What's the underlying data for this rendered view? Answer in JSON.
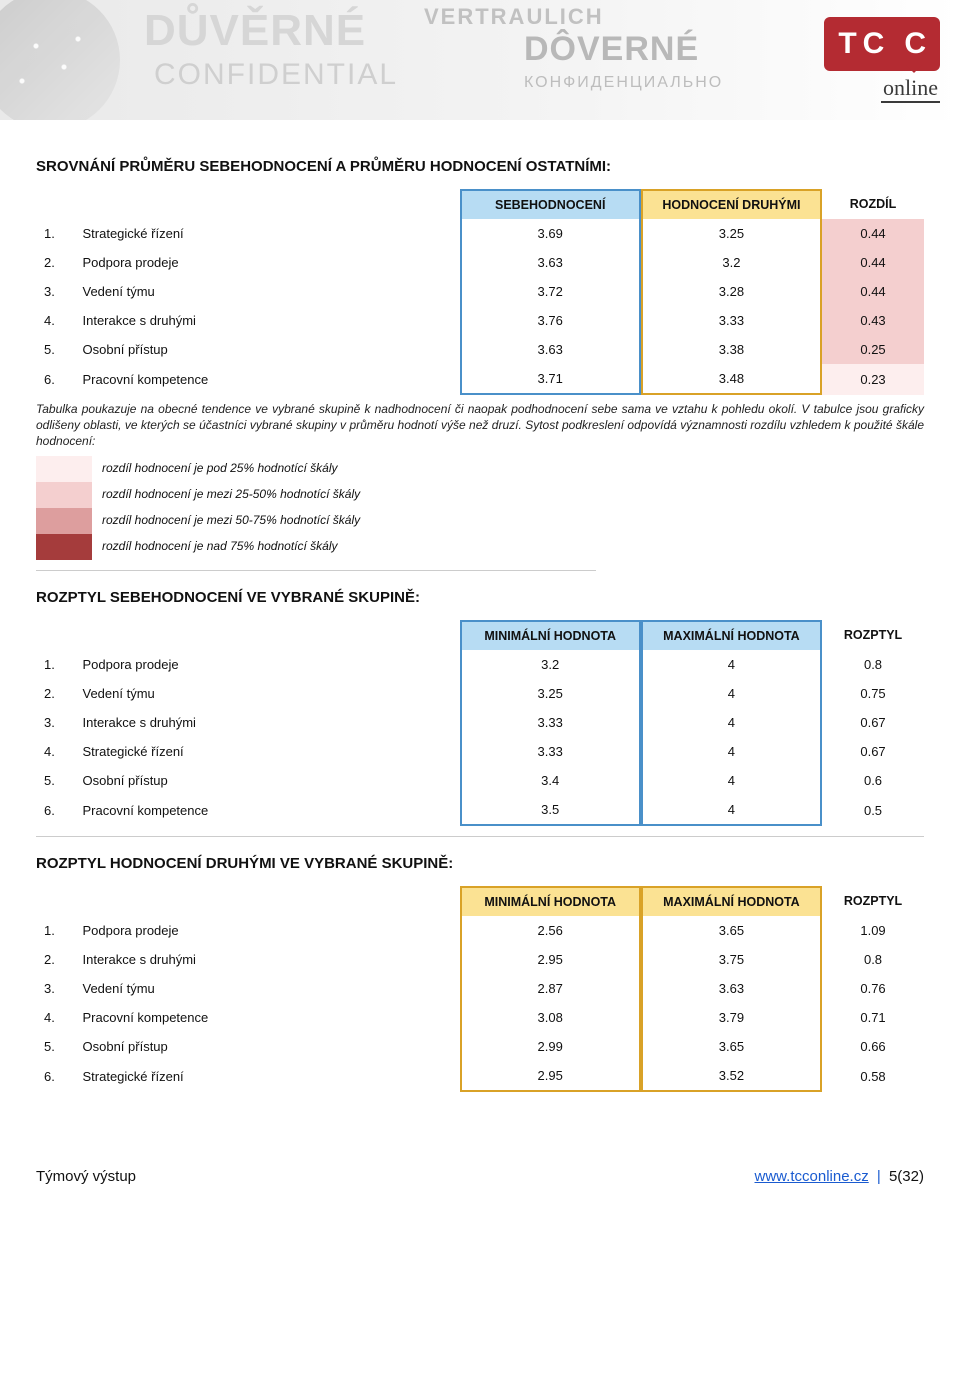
{
  "banner": {
    "words": {
      "duverne": "DŮVĚRNÉ",
      "vertraulich": "VERTRAULICH",
      "confidential": "CONFIDENTIAL",
      "doverne": "DÔVERNÉ",
      "russian": "КОНФИДЕНЦИАЛЬНО"
    },
    "logo_letters": [
      "T",
      "C",
      "C"
    ],
    "logo_sub": "online"
  },
  "colors": {
    "self_header_bg": "#b7dcf3",
    "self_border": "#4a90c9",
    "others_header_bg": "#fbe293",
    "others_border": "#d9a227",
    "severity": [
      "#fdeeee",
      "#f4cfcf",
      "#dd9e9e",
      "#a53c3c"
    ]
  },
  "table1": {
    "title": "SROVNÁNÍ PRŮMĚRU SEBEHODNOCENÍ A PRŮMĚRU HODNOCENÍ OSTATNÍMI:",
    "headers": {
      "self": "SEBEHODNOCENÍ",
      "others": "HODNOCENÍ DRUHÝMI",
      "diff": "ROZDÍL"
    },
    "rows": [
      {
        "n": "1.",
        "name": "Strategické řízení",
        "self": "3.69",
        "others": "3.25",
        "diff": "0.44",
        "sev": 1
      },
      {
        "n": "2.",
        "name": "Podpora prodeje",
        "self": "3.63",
        "others": "3.2",
        "diff": "0.44",
        "sev": 1
      },
      {
        "n": "3.",
        "name": "Vedení týmu",
        "self": "3.72",
        "others": "3.28",
        "diff": "0.44",
        "sev": 1
      },
      {
        "n": "4.",
        "name": "Interakce s druhými",
        "self": "3.76",
        "others": "3.33",
        "diff": "0.43",
        "sev": 1
      },
      {
        "n": "5.",
        "name": "Osobní přístup",
        "self": "3.63",
        "others": "3.38",
        "diff": "0.25",
        "sev": 1
      },
      {
        "n": "6.",
        "name": "Pracovní kompetence",
        "self": "3.71",
        "others": "3.48",
        "diff": "0.23",
        "sev": 0
      }
    ]
  },
  "explain": {
    "p1": "Tabulka poukazuje na obecné tendence ve vybrané skupině k nadhodnocení či naopak podhodnocení sebe sama ve vztahu k pohledu okolí. V tabulce jsou graficky odlišeny oblasti, ve kterých se účastníci vybrané skupiny v průměru hodnotí výše než druzí. Sytost podkreslení odpovídá významnosti rozdílu vzhledem k použité škále hodnocení:"
  },
  "legend": [
    {
      "sev": 0,
      "label": "rozdíl hodnocení je pod 25% hodnotící škály"
    },
    {
      "sev": 1,
      "label": "rozdíl hodnocení je mezi 25-50% hodnotící škály"
    },
    {
      "sev": 2,
      "label": "rozdíl hodnocení je mezi 50-75% hodnotící škály"
    },
    {
      "sev": 3,
      "label": "rozdíl hodnocení je nad 75% hodnotící škály"
    }
  ],
  "table2": {
    "title": "ROZPTYL SEBEHODNOCENÍ VE VYBRANÉ SKUPINĚ:",
    "box_bg": "#b7dcf3",
    "box_border": "#4a90c9",
    "headers": {
      "min": "MINIMÁLNÍ HODNOTA",
      "max": "MAXIMÁLNÍ HODNOTA",
      "range": "ROZPTYL"
    },
    "rows": [
      {
        "n": "1.",
        "name": "Podpora prodeje",
        "min": "3.2",
        "max": "4",
        "range": "0.8"
      },
      {
        "n": "2.",
        "name": "Vedení týmu",
        "min": "3.25",
        "max": "4",
        "range": "0.75"
      },
      {
        "n": "3.",
        "name": "Interakce s druhými",
        "min": "3.33",
        "max": "4",
        "range": "0.67"
      },
      {
        "n": "4.",
        "name": "Strategické řízení",
        "min": "3.33",
        "max": "4",
        "range": "0.67"
      },
      {
        "n": "5.",
        "name": "Osobní přístup",
        "min": "3.4",
        "max": "4",
        "range": "0.6"
      },
      {
        "n": "6.",
        "name": "Pracovní kompetence",
        "min": "3.5",
        "max": "4",
        "range": "0.5"
      }
    ]
  },
  "table3": {
    "title": "ROZPTYL HODNOCENÍ DRUHÝMI VE VYBRANÉ SKUPINĚ:",
    "box_bg": "#fbe293",
    "box_border": "#d9a227",
    "headers": {
      "min": "MINIMÁLNÍ HODNOTA",
      "max": "MAXIMÁLNÍ HODNOTA",
      "range": "ROZPTYL"
    },
    "rows": [
      {
        "n": "1.",
        "name": "Podpora prodeje",
        "min": "2.56",
        "max": "3.65",
        "range": "1.09"
      },
      {
        "n": "2.",
        "name": "Interakce s druhými",
        "min": "2.95",
        "max": "3.75",
        "range": "0.8"
      },
      {
        "n": "3.",
        "name": "Vedení týmu",
        "min": "2.87",
        "max": "3.63",
        "range": "0.76"
      },
      {
        "n": "4.",
        "name": "Pracovní kompetence",
        "min": "3.08",
        "max": "3.79",
        "range": "0.71"
      },
      {
        "n": "5.",
        "name": "Osobní přístup",
        "min": "2.99",
        "max": "3.65",
        "range": "0.66"
      },
      {
        "n": "6.",
        "name": "Strategické řízení",
        "min": "2.95",
        "max": "3.52",
        "range": "0.58"
      }
    ]
  },
  "footer": {
    "left": "Týmový výstup",
    "link": "www.tcconline.cz",
    "page": "5(32)"
  }
}
